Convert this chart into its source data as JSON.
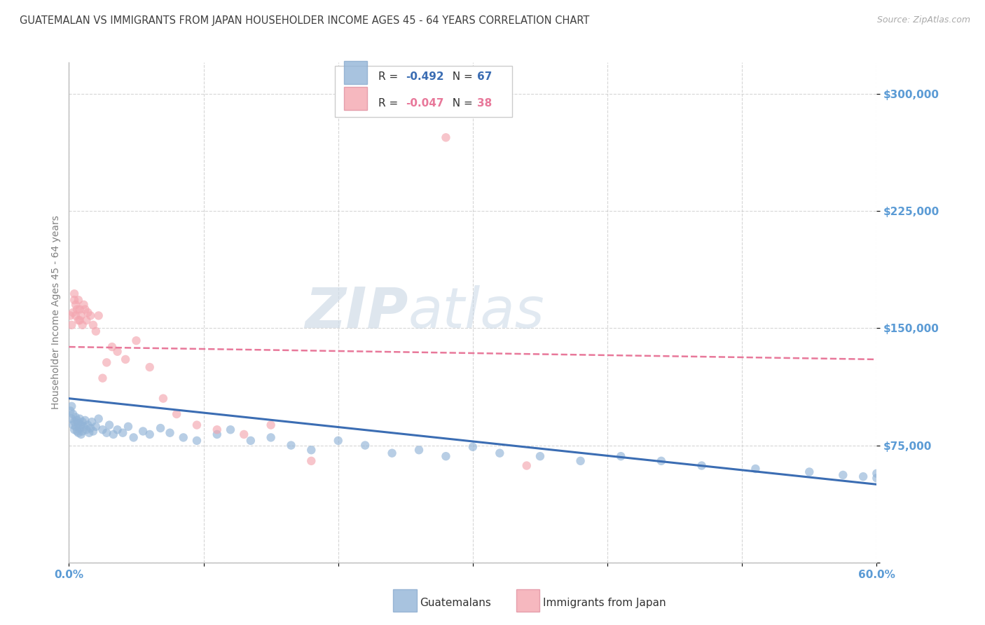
{
  "title": "GUATEMALAN VS IMMIGRANTS FROM JAPAN HOUSEHOLDER INCOME AGES 45 - 64 YEARS CORRELATION CHART",
  "source": "Source: ZipAtlas.com",
  "ylabel": "Householder Income Ages 45 - 64 years",
  "xlim": [
    0.0,
    0.6
  ],
  "ylim": [
    0,
    320000
  ],
  "yticks": [
    0,
    75000,
    150000,
    225000,
    300000
  ],
  "ytick_labels": [
    "",
    "$75,000",
    "$150,000",
    "$225,000",
    "$300,000"
  ],
  "watermark_zip": "ZIP",
  "watermark_atlas": "atlas",
  "legend_blue_r": "-0.492",
  "legend_blue_n": "67",
  "legend_pink_r": "-0.047",
  "legend_pink_n": "38",
  "blue_color": "#92B4D7",
  "pink_color": "#F4A6B0",
  "trendline_blue_color": "#3B6DB3",
  "trendline_pink_color": "#E8789A",
  "title_color": "#404040",
  "axis_label_color": "#808080",
  "ytick_color": "#5B9BD5",
  "grid_color": "#CCCCCC",
  "background_color": "#FFFFFF",
  "blue_scatter_x": [
    0.001,
    0.002,
    0.002,
    0.003,
    0.003,
    0.004,
    0.004,
    0.005,
    0.005,
    0.006,
    0.006,
    0.007,
    0.007,
    0.008,
    0.008,
    0.009,
    0.009,
    0.01,
    0.01,
    0.011,
    0.012,
    0.013,
    0.014,
    0.015,
    0.016,
    0.017,
    0.018,
    0.02,
    0.022,
    0.025,
    0.028,
    0.03,
    0.033,
    0.036,
    0.04,
    0.044,
    0.048,
    0.055,
    0.06,
    0.068,
    0.075,
    0.085,
    0.095,
    0.11,
    0.12,
    0.135,
    0.15,
    0.165,
    0.18,
    0.2,
    0.22,
    0.24,
    0.26,
    0.28,
    0.3,
    0.32,
    0.35,
    0.38,
    0.41,
    0.44,
    0.47,
    0.51,
    0.55,
    0.575,
    0.59,
    0.6,
    0.6
  ],
  "blue_scatter_y": [
    97000,
    100000,
    92000,
    95000,
    88000,
    90000,
    85000,
    93000,
    87000,
    91000,
    84000,
    89000,
    83000,
    92000,
    86000,
    88000,
    82000,
    90000,
    84000,
    87000,
    91000,
    85000,
    88000,
    83000,
    86000,
    90000,
    84000,
    87000,
    92000,
    85000,
    83000,
    88000,
    82000,
    85000,
    83000,
    87000,
    80000,
    84000,
    82000,
    86000,
    83000,
    80000,
    78000,
    82000,
    85000,
    78000,
    80000,
    75000,
    72000,
    78000,
    75000,
    70000,
    72000,
    68000,
    74000,
    70000,
    68000,
    65000,
    68000,
    65000,
    62000,
    60000,
    58000,
    56000,
    55000,
    54000,
    57000
  ],
  "pink_scatter_x": [
    0.001,
    0.002,
    0.003,
    0.004,
    0.004,
    0.005,
    0.005,
    0.006,
    0.007,
    0.007,
    0.008,
    0.008,
    0.009,
    0.01,
    0.011,
    0.012,
    0.013,
    0.014,
    0.016,
    0.018,
    0.02,
    0.022,
    0.025,
    0.028,
    0.032,
    0.036,
    0.042,
    0.05,
    0.06,
    0.07,
    0.08,
    0.095,
    0.11,
    0.13,
    0.15,
    0.18,
    0.28,
    0.34
  ],
  "pink_scatter_y": [
    158000,
    152000,
    160000,
    168000,
    172000,
    165000,
    158000,
    162000,
    155000,
    168000,
    162000,
    155000,
    158000,
    152000,
    165000,
    162000,
    155000,
    160000,
    158000,
    152000,
    148000,
    158000,
    118000,
    128000,
    138000,
    135000,
    130000,
    142000,
    125000,
    105000,
    95000,
    88000,
    85000,
    82000,
    88000,
    65000,
    272000,
    62000
  ],
  "blue_trend_x": [
    0.0,
    0.6
  ],
  "blue_trend_y": [
    105000,
    50000
  ],
  "pink_trend_x": [
    0.0,
    0.6
  ],
  "pink_trend_y": [
    138000,
    130000
  ]
}
